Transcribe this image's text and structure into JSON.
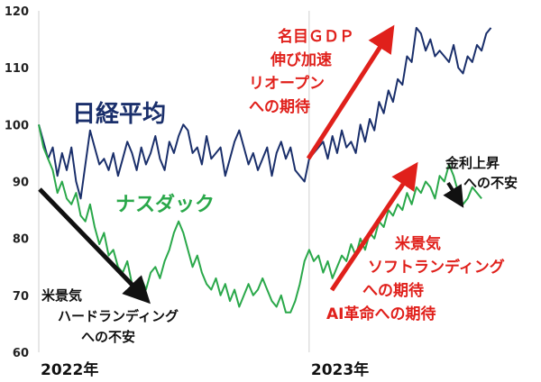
{
  "chart_data": {
    "type": "line",
    "title": "",
    "xlabel": "",
    "ylabel": "",
    "ylim": [
      60,
      120
    ],
    "yticks": [
      60,
      70,
      80,
      90,
      100,
      110,
      120
    ],
    "xlim": [
      0,
      100
    ],
    "xticks": [
      {
        "x": 0,
        "label": "2022年"
      },
      {
        "x": 58,
        "label": "2023年"
      }
    ],
    "grid": {
      "vertical": true,
      "horizontal": false
    },
    "series": [
      {
        "name": "日経平均",
        "color": "#1a2f6b",
        "x": [
          0,
          1,
          2,
          3,
          4,
          5,
          6,
          7,
          8,
          9,
          10,
          11,
          12,
          13,
          14,
          15,
          16,
          17,
          18,
          19,
          20,
          21,
          22,
          23,
          24,
          25,
          26,
          27,
          28,
          29,
          30,
          31,
          32,
          33,
          34,
          35,
          36,
          37,
          38,
          39,
          40,
          41,
          42,
          43,
          44,
          45,
          46,
          47,
          48,
          49,
          50,
          51,
          52,
          53,
          54,
          55,
          56,
          57,
          58,
          59,
          60,
          61,
          62,
          63,
          64,
          65,
          66,
          67,
          68,
          69,
          70,
          71,
          72,
          73,
          74,
          75,
          76,
          77,
          78,
          79,
          80,
          81,
          82,
          83,
          84,
          85,
          86,
          87,
          88,
          89,
          90,
          91,
          92,
          93,
          94,
          95,
          96,
          97
        ],
        "values": [
          100,
          97,
          94,
          96,
          91,
          95,
          92,
          96,
          90,
          87,
          93,
          99,
          96,
          93,
          94,
          92,
          95,
          91,
          94,
          97,
          95,
          92,
          96,
          93,
          95,
          98,
          94,
          92,
          97,
          95,
          98,
          100,
          99,
          95,
          96,
          93,
          98,
          94,
          95,
          96,
          91,
          94,
          97,
          99,
          96,
          93,
          95,
          92,
          94,
          96,
          91,
          95,
          97,
          94,
          96,
          92,
          91,
          90,
          94,
          95,
          96,
          97,
          94,
          98,
          95,
          99,
          96,
          97,
          95,
          100,
          97,
          101,
          99,
          104,
          102,
          106,
          104,
          108,
          107,
          112,
          111,
          117,
          116,
          113,
          115,
          112,
          113,
          112,
          111,
          114,
          110,
          109,
          112,
          111,
          114,
          113,
          116,
          117
        ]
      },
      {
        "name": "ナスダック",
        "color": "#2aa84a",
        "x": [
          0,
          1,
          2,
          3,
          4,
          5,
          6,
          7,
          8,
          9,
          10,
          11,
          12,
          13,
          14,
          15,
          16,
          17,
          18,
          19,
          20,
          21,
          22,
          23,
          24,
          25,
          26,
          27,
          28,
          29,
          30,
          31,
          32,
          33,
          34,
          35,
          36,
          37,
          38,
          39,
          40,
          41,
          42,
          43,
          44,
          45,
          46,
          47,
          48,
          49,
          50,
          51,
          52,
          53,
          54,
          55,
          56,
          57,
          58,
          59,
          60,
          61,
          62,
          63,
          64,
          65,
          66,
          67,
          68,
          69,
          70,
          71,
          72,
          73,
          74,
          75,
          76,
          77,
          78,
          79,
          80,
          81,
          82,
          83,
          84,
          85,
          86,
          87,
          88,
          89,
          90,
          91,
          92,
          93,
          94,
          95
        ],
        "values": [
          100,
          96,
          94,
          92,
          88,
          90,
          87,
          86,
          88,
          84,
          83,
          86,
          82,
          79,
          81,
          77,
          78,
          75,
          74,
          76,
          72,
          70,
          73,
          71,
          74,
          75,
          73,
          76,
          78,
          81,
          83,
          81,
          78,
          75,
          77,
          74,
          72,
          71,
          73,
          70,
          72,
          69,
          71,
          68,
          70,
          72,
          70,
          71,
          73,
          71,
          69,
          68,
          70,
          67,
          67,
          69,
          72,
          76,
          78,
          76,
          77,
          74,
          76,
          73,
          75,
          77,
          76,
          79,
          77,
          80,
          78,
          81,
          80,
          83,
          82,
          85,
          84,
          86,
          85,
          88,
          86,
          89,
          88,
          90,
          89,
          87,
          91,
          90,
          93,
          91,
          88,
          86,
          87,
          89,
          88,
          87
        ]
      }
    ],
    "series_labels": {
      "nikkei": "日経平均",
      "nasdaq": "ナスダック"
    },
    "annotations": {
      "hard_landing": [
        "米景気",
        "ハードランディング",
        "への不安"
      ],
      "gdp": [
        "名目ＧＤＰ",
        "伸び加速",
        "リオープン",
        "への期待"
      ],
      "soft_landing": [
        "米景気",
        "ソフトランディング",
        "への期待",
        "AI革命への期待"
      ],
      "rate_hike": [
        "金利上昇",
        "への不安"
      ]
    },
    "arrow_colors": {
      "black": "#111111",
      "red": "#e0201b"
    }
  }
}
